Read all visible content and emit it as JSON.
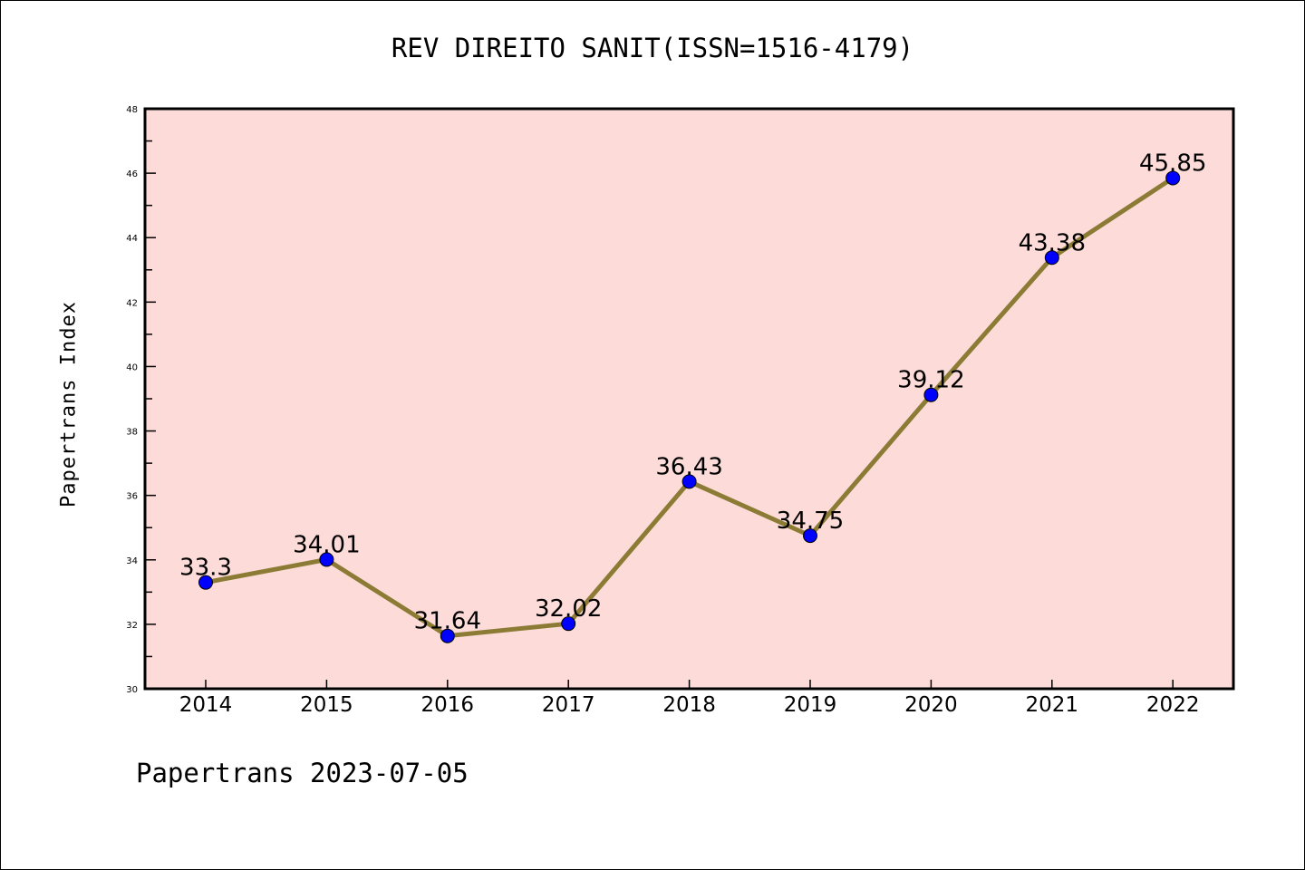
{
  "chart_data": {
    "type": "line",
    "title": "REV DIREITO SANIT(ISSN=1516-4179)",
    "xlabel": "",
    "ylabel": "Papertrans Index",
    "x": [
      "2014",
      "2015",
      "2016",
      "2017",
      "2018",
      "2019",
      "2020",
      "2021",
      "2022"
    ],
    "series": [
      {
        "name": "Papertrans Index",
        "values": [
          33.3,
          34.01,
          31.64,
          32.02,
          36.43,
          34.75,
          39.12,
          43.38,
          45.85
        ]
      }
    ],
    "data_labels": [
      "33.3",
      "34.01",
      "31.64",
      "32.02",
      "36.43",
      "34.75",
      "39.12",
      "43.38",
      "45.85"
    ],
    "ylim": [
      30,
      48
    ],
    "yticks": [
      "30",
      "32",
      "34",
      "36",
      "38",
      "40",
      "42",
      "44",
      "46",
      "48"
    ],
    "grid": false,
    "colors": {
      "background": "#fddbd8",
      "line": "#8b7b35",
      "marker": "#0000ff"
    }
  },
  "footer": "Papertrans 2023-07-05"
}
